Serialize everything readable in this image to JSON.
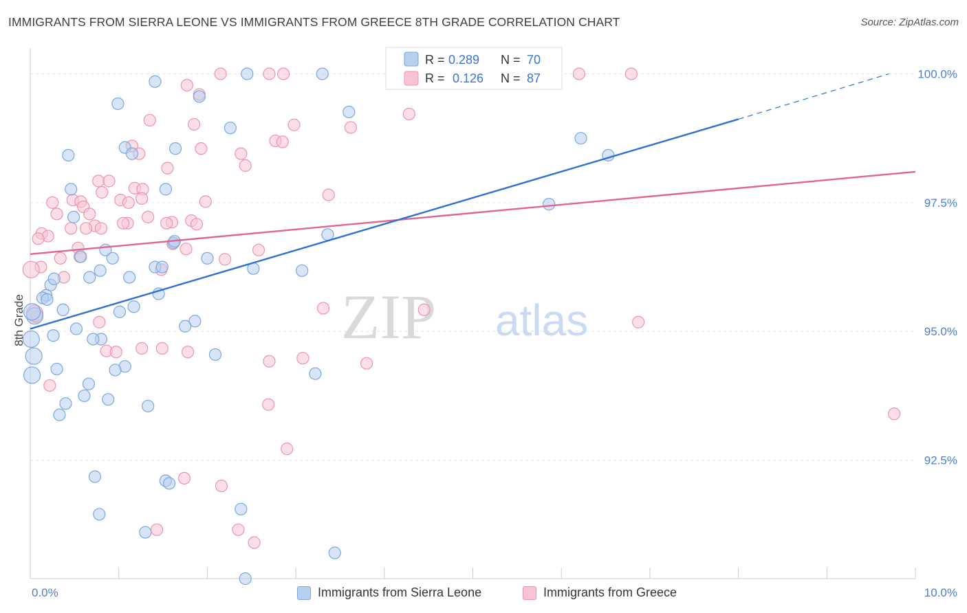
{
  "header": {
    "title": "IMMIGRANTS FROM SIERRA LEONE VS IMMIGRANTS FROM GREECE 8TH GRADE CORRELATION CHART",
    "source": "Source: ZipAtlas.com"
  },
  "watermark": {
    "zip": "ZIP",
    "atlas": "atlas"
  },
  "legend": {
    "r_label": "R =",
    "n_label": "N =",
    "items": [
      {
        "r": "0.289",
        "n": "70"
      },
      {
        "r": "0.126",
        "n": "87"
      }
    ]
  },
  "bottom_legend": {
    "items": [
      {
        "label": "Immigrants from Sierra Leone"
      },
      {
        "label": "Immigrants from Greece"
      }
    ]
  },
  "chart_data": {
    "type": "scatter",
    "title": "IMMIGRANTS FROM SIERRA LEONE VS IMMIGRANTS FROM GREECE 8TH GRADE CORRELATION CHART",
    "xlabel": "",
    "ylabel": "8th Grade",
    "xlim": [
      0,
      10
    ],
    "ylim": [
      90.2,
      100.5
    ],
    "x_tick_labels": [
      "0.0%",
      "10.0%"
    ],
    "y_ticks": [
      92.5,
      95.0,
      97.5,
      100.0
    ],
    "y_tick_labels": [
      "92.5%",
      "95.0%",
      "97.5%",
      "100.0%"
    ],
    "grid": true,
    "legend_position": "top-center",
    "colors": {
      "series1_fill": "#b8d0f0",
      "series1_stroke": "#7aa7e0",
      "series1_line": "#2f6fcf",
      "series2_fill": "#f8c4d4",
      "series2_stroke": "#ee93ae",
      "series2_line": "#e0648f",
      "tick": "#4a7fd0"
    },
    "series": [
      {
        "name": "Immigrants from Sierra Leone",
        "r": 0.289,
        "n": 70,
        "trend": {
          "x0": 0.0,
          "y0": 95.05,
          "x1": 8.0,
          "y1": 99.12,
          "dash_to_x": 9.7,
          "dash_to_y": 100.0
        },
        "points": [
          [
            2.45,
            100.0
          ],
          [
            3.3,
            100.0
          ],
          [
            1.41,
            99.85
          ],
          [
            0.99,
            99.42
          ],
          [
            1.91,
            99.56
          ],
          [
            3.6,
            99.26
          ],
          [
            2.26,
            98.95
          ],
          [
            6.22,
            98.75
          ],
          [
            1.07,
            98.57
          ],
          [
            1.64,
            98.55
          ],
          [
            0.43,
            98.42
          ],
          [
            1.15,
            98.45
          ],
          [
            6.53,
            98.42
          ],
          [
            0.46,
            97.76
          ],
          [
            1.53,
            97.76
          ],
          [
            5.86,
            97.47
          ],
          [
            0.49,
            97.22
          ],
          [
            3.36,
            96.88
          ],
          [
            1.62,
            96.72
          ],
          [
            0.85,
            96.58
          ],
          [
            0.57,
            96.45
          ],
          [
            2.0,
            96.42
          ],
          [
            0.93,
            96.42
          ],
          [
            1.41,
            96.25
          ],
          [
            1.49,
            96.25
          ],
          [
            2.52,
            96.22
          ],
          [
            3.07,
            96.18
          ],
          [
            0.79,
            96.18
          ],
          [
            0.67,
            96.05
          ],
          [
            1.12,
            96.05
          ],
          [
            0.23,
            95.9
          ],
          [
            1.45,
            95.73
          ],
          [
            0.18,
            95.7
          ],
          [
            0.14,
            95.65
          ],
          [
            0.19,
            95.62
          ],
          [
            1.17,
            95.48
          ],
          [
            0.37,
            95.42
          ],
          [
            1.01,
            95.38
          ],
          [
            0.05,
            95.3
          ],
          [
            1.86,
            95.2
          ],
          [
            1.75,
            95.1
          ],
          [
            0.52,
            95.05
          ],
          [
            0.26,
            94.92
          ],
          [
            0.8,
            94.85
          ],
          [
            0.71,
            94.85
          ],
          [
            2.09,
            94.55
          ],
          [
            0.04,
            94.52
          ],
          [
            1.07,
            94.32
          ],
          [
            0.3,
            94.27
          ],
          [
            0.96,
            94.25
          ],
          [
            3.22,
            94.18
          ],
          [
            0.02,
            94.15
          ],
          [
            0.66,
            93.98
          ],
          [
            0.61,
            93.75
          ],
          [
            0.88,
            93.68
          ],
          [
            0.4,
            93.6
          ],
          [
            1.33,
            93.55
          ],
          [
            0.33,
            93.38
          ],
          [
            0.73,
            92.18
          ],
          [
            1.53,
            92.1
          ],
          [
            1.57,
            92.05
          ],
          [
            2.38,
            91.55
          ],
          [
            0.78,
            91.45
          ],
          [
            1.3,
            91.1
          ],
          [
            3.44,
            90.7
          ],
          [
            2.43,
            90.2
          ],
          [
            0.01,
            94.85
          ],
          [
            0.02,
            95.38
          ],
          [
            1.63,
            96.75
          ],
          [
            0.27,
            96.02
          ]
        ]
      },
      {
        "name": "Immigrants from Greece",
        "r": 0.126,
        "n": 87,
        "trend": {
          "x0": 0.0,
          "y0": 96.5,
          "x1": 10.0,
          "y1": 98.1
        },
        "points": [
          [
            2.15,
            100.0
          ],
          [
            2.7,
            100.0
          ],
          [
            2.86,
            100.0
          ],
          [
            5.1,
            100.0
          ],
          [
            5.32,
            100.0
          ],
          [
            6.2,
            100.0
          ],
          [
            6.79,
            100.0
          ],
          [
            1.77,
            99.78
          ],
          [
            1.91,
            99.6
          ],
          [
            4.28,
            99.22
          ],
          [
            1.35,
            99.1
          ],
          [
            1.85,
            99.02
          ],
          [
            2.98,
            99.01
          ],
          [
            3.62,
            98.96
          ],
          [
            2.77,
            98.7
          ],
          [
            2.85,
            98.68
          ],
          [
            1.15,
            98.6
          ],
          [
            1.93,
            98.55
          ],
          [
            2.38,
            98.45
          ],
          [
            2.43,
            98.22
          ],
          [
            1.55,
            98.17
          ],
          [
            0.77,
            97.92
          ],
          [
            0.89,
            97.92
          ],
          [
            1.18,
            97.78
          ],
          [
            1.27,
            97.76
          ],
          [
            0.81,
            97.7
          ],
          [
            3.37,
            97.65
          ],
          [
            1.26,
            97.58
          ],
          [
            0.48,
            97.55
          ],
          [
            1.02,
            97.55
          ],
          [
            0.57,
            97.52
          ],
          [
            1.11,
            97.5
          ],
          [
            0.25,
            97.5
          ],
          [
            1.98,
            97.52
          ],
          [
            0.6,
            97.42
          ],
          [
            0.3,
            97.28
          ],
          [
            0.67,
            97.28
          ],
          [
            1.33,
            97.22
          ],
          [
            1.82,
            97.15
          ],
          [
            1.6,
            97.12
          ],
          [
            1.1,
            97.1
          ],
          [
            1.54,
            97.1
          ],
          [
            1.88,
            97.08
          ],
          [
            0.73,
            97.05
          ],
          [
            0.46,
            97.0
          ],
          [
            0.63,
            97.0
          ],
          [
            0.8,
            97.0
          ],
          [
            0.13,
            96.9
          ],
          [
            0.2,
            96.85
          ],
          [
            0.09,
            96.8
          ],
          [
            1.61,
            96.7
          ],
          [
            0.54,
            96.62
          ],
          [
            2.58,
            96.58
          ],
          [
            0.56,
            96.45
          ],
          [
            0.34,
            96.42
          ],
          [
            0.12,
            96.25
          ],
          [
            1.48,
            96.2
          ],
          [
            0.38,
            96.05
          ],
          [
            3.31,
            95.45
          ],
          [
            4.45,
            95.42
          ],
          [
            0.07,
            95.28
          ],
          [
            6.87,
            95.18
          ],
          [
            0.78,
            95.18
          ],
          [
            0.86,
            94.62
          ],
          [
            0.97,
            94.6
          ],
          [
            1.26,
            94.67
          ],
          [
            1.49,
            94.67
          ],
          [
            1.78,
            94.6
          ],
          [
            3.08,
            94.48
          ],
          [
            2.7,
            94.42
          ],
          [
            3.8,
            94.38
          ],
          [
            0.22,
            93.95
          ],
          [
            2.69,
            93.58
          ],
          [
            9.76,
            93.4
          ],
          [
            2.9,
            92.72
          ],
          [
            1.74,
            92.15
          ],
          [
            2.16,
            92.0
          ],
          [
            2.35,
            91.15
          ],
          [
            1.43,
            91.15
          ],
          [
            2.53,
            90.9
          ],
          [
            5.01,
            100.0
          ],
          [
            0.05,
            95.35
          ],
          [
            1.23,
            98.45
          ],
          [
            1.05,
            97.1
          ],
          [
            0.01,
            96.2
          ],
          [
            2.2,
            96.4
          ],
          [
            1.76,
            96.6
          ]
        ]
      }
    ]
  }
}
